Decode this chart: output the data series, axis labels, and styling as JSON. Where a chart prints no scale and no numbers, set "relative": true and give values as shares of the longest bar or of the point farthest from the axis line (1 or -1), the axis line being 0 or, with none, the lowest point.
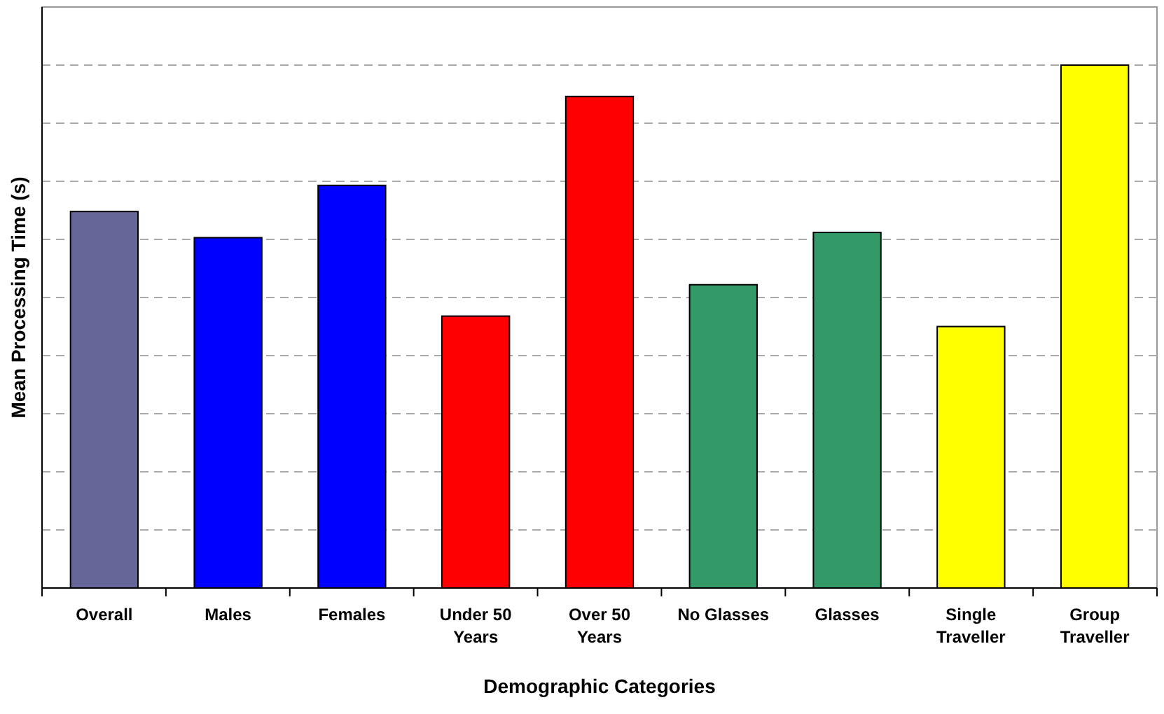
{
  "chart_data": {
    "type": "bar",
    "relative": true,
    "xlabel": "Demographic Categories",
    "ylabel": "Mean Processing Time (s)",
    "categories": [
      "Overall",
      "Males",
      "Females",
      "Under 50 Years",
      "Over 50 Years",
      "No Glasses",
      "Glasses",
      "Single Traveller",
      "Group Traveller"
    ],
    "values": [
      0.72,
      0.67,
      0.77,
      0.52,
      0.94,
      0.58,
      0.68,
      0.5,
      1
    ],
    "colors": [
      "#666699",
      "#0000ff",
      "#0000ff",
      "#ff0000",
      "#ff0000",
      "#339966",
      "#339966",
      "#ffff00",
      "#ffff00"
    ],
    "grid": "y"
  }
}
